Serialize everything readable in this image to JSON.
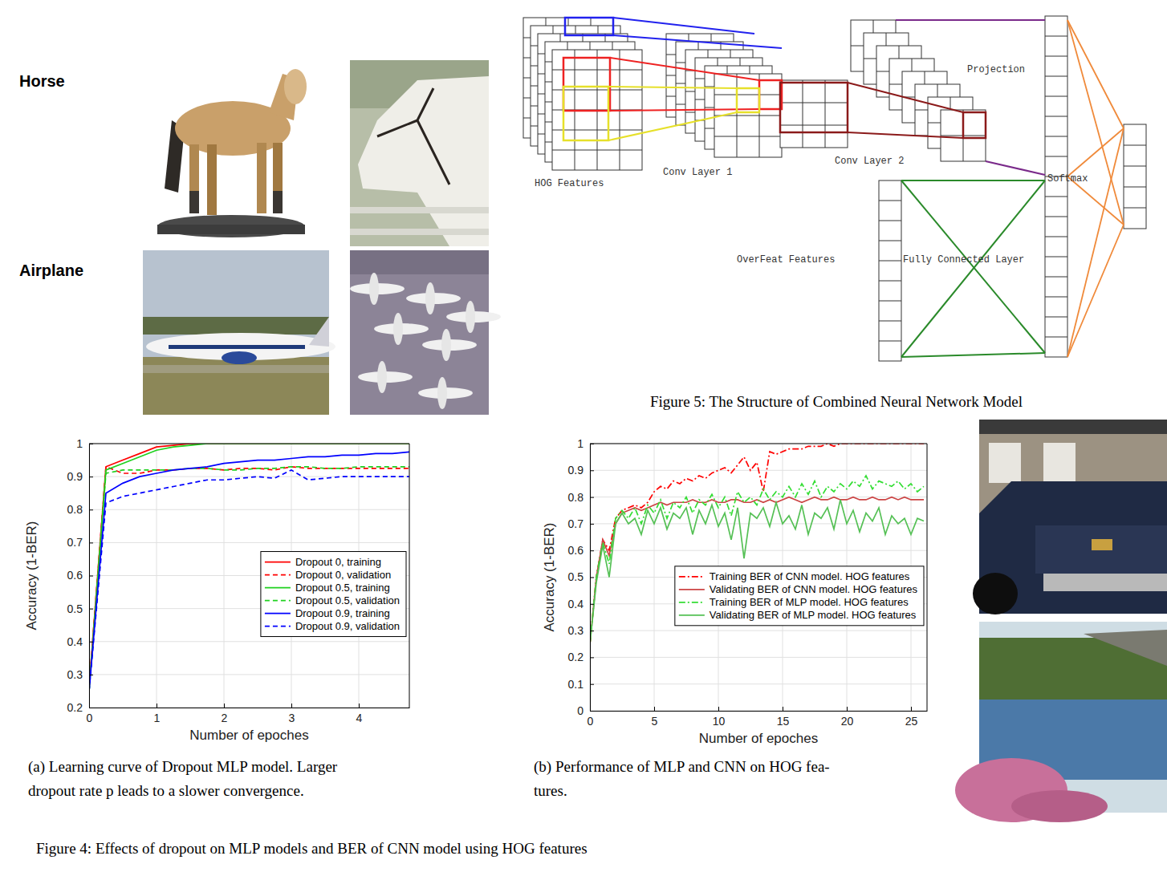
{
  "image_labels": [
    "Horse",
    "Airplane"
  ],
  "figure5": {
    "labels": [
      "HOG Features",
      "Conv Layer 1",
      "Conv Layer 2",
      "Projection",
      "OverFeat Features",
      "Fully Connected Layer",
      "Softmax"
    ],
    "caption": "Figure 5: The Structure of Combined Neural Network Model"
  },
  "figure4": {
    "caption": "Figure 4: Effects of dropout on MLP models and BER of CNN model using HOG features"
  },
  "chart_data": [
    {
      "type": "line",
      "x": [
        0,
        0.25,
        0.5,
        0.75,
        1,
        1.25,
        1.5,
        1.75,
        2,
        2.25,
        2.5,
        2.75,
        3,
        3.25,
        3.5,
        3.75,
        4,
        4.25,
        4.5,
        4.75
      ],
      "series": [
        {
          "name": "Dropout 0, training",
          "color": "#ff0000",
          "line_style": "solid",
          "values": [
            0.26,
            0.93,
            0.95,
            0.97,
            0.99,
            0.995,
            1,
            1,
            1,
            1,
            1,
            1,
            1,
            1,
            1,
            1,
            1,
            1,
            1,
            1
          ]
        },
        {
          "name": "Dropout 0, validation",
          "color": "#ff0000",
          "line_style": "dashed",
          "values": [
            0.26,
            0.93,
            0.91,
            0.91,
            0.92,
            0.92,
            0.925,
            0.925,
            0.92,
            0.925,
            0.925,
            0.92,
            0.93,
            0.925,
            0.925,
            0.925,
            0.925,
            0.925,
            0.925,
            0.925
          ]
        },
        {
          "name": "Dropout 0.5, training",
          "color": "#1fd11f",
          "line_style": "solid",
          "values": [
            0.25,
            0.92,
            0.94,
            0.96,
            0.98,
            0.99,
            0.995,
            1,
            1,
            1,
            1,
            1,
            1,
            1,
            1,
            1,
            1,
            1,
            1,
            1
          ]
        },
        {
          "name": "Dropout 0.5, validation",
          "color": "#1fd11f",
          "line_style": "dashed",
          "values": [
            0.25,
            0.91,
            0.92,
            0.92,
            0.92,
            0.92,
            0.925,
            0.925,
            0.92,
            0.92,
            0.925,
            0.925,
            0.93,
            0.93,
            0.925,
            0.925,
            0.93,
            0.93,
            0.93,
            0.93
          ]
        },
        {
          "name": "Dropout 0.9, training",
          "color": "#0000ff",
          "line_style": "solid",
          "values": [
            0.25,
            0.85,
            0.88,
            0.9,
            0.91,
            0.92,
            0.925,
            0.93,
            0.94,
            0.945,
            0.95,
            0.95,
            0.955,
            0.96,
            0.96,
            0.965,
            0.965,
            0.97,
            0.97,
            0.975
          ]
        },
        {
          "name": "Dropout 0.9, validation",
          "color": "#0000ff",
          "line_style": "dashed",
          "values": [
            0.25,
            0.82,
            0.84,
            0.85,
            0.86,
            0.87,
            0.88,
            0.89,
            0.89,
            0.895,
            0.9,
            0.895,
            0.92,
            0.89,
            0.895,
            0.9,
            0.9,
            0.9,
            0.9,
            0.9
          ]
        }
      ],
      "xlim": [
        0,
        4.75
      ],
      "ylim": [
        0.2,
        1
      ],
      "xticks": [
        0,
        1,
        2,
        3,
        4
      ],
      "yticks": [
        0.2,
        0.3,
        0.4,
        0.5,
        0.6,
        0.7,
        0.8,
        0.9,
        1
      ],
      "xlabel": "Number of epoches",
      "ylabel": "Accuracy (1-BER)",
      "grid": true,
      "legend": "right",
      "caption": [
        "(a) Learning curve of Dropout MLP model. Larger",
        "dropout rate p leads to a slower convergence."
      ]
    },
    {
      "type": "line",
      "x": [
        0,
        0.5,
        1,
        1.5,
        2,
        2.5,
        3,
        3.5,
        4,
        4.5,
        5,
        5.5,
        6,
        6.5,
        7,
        7.5,
        8,
        8.5,
        9,
        9.5,
        10,
        10.5,
        11,
        11.5,
        12,
        12.5,
        13,
        13.5,
        14,
        14.5,
        15,
        15.5,
        16,
        16.5,
        17,
        17.5,
        18,
        18.5,
        19,
        19.5,
        20,
        20.5,
        21,
        21.5,
        22,
        22.5,
        23,
        23.5,
        24,
        24.5,
        25,
        25.5,
        26
      ],
      "series": [
        {
          "name": "Training BER of CNN model. HOG features",
          "color": "#ff0000",
          "line_style": "dashdot",
          "values": [
            0.25,
            0.5,
            0.64,
            0.6,
            0.72,
            0.75,
            0.76,
            0.77,
            0.76,
            0.78,
            0.82,
            0.84,
            0.83,
            0.86,
            0.85,
            0.87,
            0.86,
            0.88,
            0.87,
            0.89,
            0.9,
            0.91,
            0.89,
            0.92,
            0.95,
            0.9,
            0.93,
            0.82,
            0.97,
            0.96,
            0.97,
            0.98,
            0.98,
            0.98,
            0.99,
            0.99,
            0.99,
            1,
            0.99,
            1,
            1,
            1,
            1,
            1,
            1,
            1,
            1,
            1,
            1,
            1,
            1,
            1,
            1
          ]
        },
        {
          "name": "Validating BER of CNN model. HOG features",
          "color": "#cc4444",
          "line_style": "solid",
          "values": [
            0.25,
            0.5,
            0.64,
            0.58,
            0.7,
            0.74,
            0.75,
            0.76,
            0.75,
            0.76,
            0.77,
            0.78,
            0.77,
            0.78,
            0.78,
            0.78,
            0.79,
            0.78,
            0.78,
            0.79,
            0.78,
            0.78,
            0.79,
            0.79,
            0.78,
            0.78,
            0.79,
            0.78,
            0.79,
            0.78,
            0.79,
            0.8,
            0.79,
            0.78,
            0.79,
            0.8,
            0.79,
            0.79,
            0.8,
            0.79,
            0.79,
            0.8,
            0.79,
            0.79,
            0.8,
            0.79,
            0.79,
            0.8,
            0.79,
            0.8,
            0.79,
            0.79,
            0.79
          ]
        },
        {
          "name": "Training BER of MLP model. HOG features",
          "color": "#33dd33",
          "line_style": "dashdot",
          "values": [
            0.25,
            0.5,
            0.63,
            0.55,
            0.72,
            0.75,
            0.72,
            0.76,
            0.7,
            0.77,
            0.74,
            0.79,
            0.72,
            0.78,
            0.76,
            0.8,
            0.74,
            0.79,
            0.77,
            0.81,
            0.76,
            0.8,
            0.73,
            0.82,
            0.78,
            0.8,
            0.77,
            0.83,
            0.79,
            0.82,
            0.8,
            0.84,
            0.8,
            0.85,
            0.81,
            0.86,
            0.8,
            0.84,
            0.82,
            0.85,
            0.83,
            0.86,
            0.84,
            0.88,
            0.83,
            0.86,
            0.85,
            0.84,
            0.86,
            0.83,
            0.85,
            0.82,
            0.84
          ]
        },
        {
          "name": "Validating BER of MLP model. HOG features",
          "color": "#55c055",
          "line_style": "solid",
          "values": [
            0.25,
            0.48,
            0.62,
            0.5,
            0.7,
            0.74,
            0.7,
            0.72,
            0.66,
            0.75,
            0.7,
            0.76,
            0.68,
            0.74,
            0.72,
            0.76,
            0.66,
            0.75,
            0.7,
            0.77,
            0.69,
            0.74,
            0.64,
            0.76,
            0.57,
            0.74,
            0.72,
            0.76,
            0.69,
            0.78,
            0.7,
            0.73,
            0.68,
            0.77,
            0.66,
            0.74,
            0.72,
            0.76,
            0.68,
            0.79,
            0.7,
            0.75,
            0.67,
            0.74,
            0.71,
            0.76,
            0.66,
            0.73,
            0.7,
            0.72,
            0.66,
            0.72,
            0.71
          ]
        }
      ],
      "xlim": [
        0,
        26.25
      ],
      "ylim": [
        0,
        1
      ],
      "xticks": [
        0,
        5,
        10,
        15,
        20,
        25
      ],
      "yticks": [
        0,
        0.1,
        0.2,
        0.3,
        0.4,
        0.5,
        0.6,
        0.7,
        0.8,
        0.9,
        1
      ],
      "xlabel": "Number of epoches",
      "ylabel": "Accuracy (1-BER)",
      "grid": true,
      "legend": "right",
      "caption": [
        "(b) Performance of MLP and CNN on HOG fea-",
        "tures."
      ]
    }
  ]
}
